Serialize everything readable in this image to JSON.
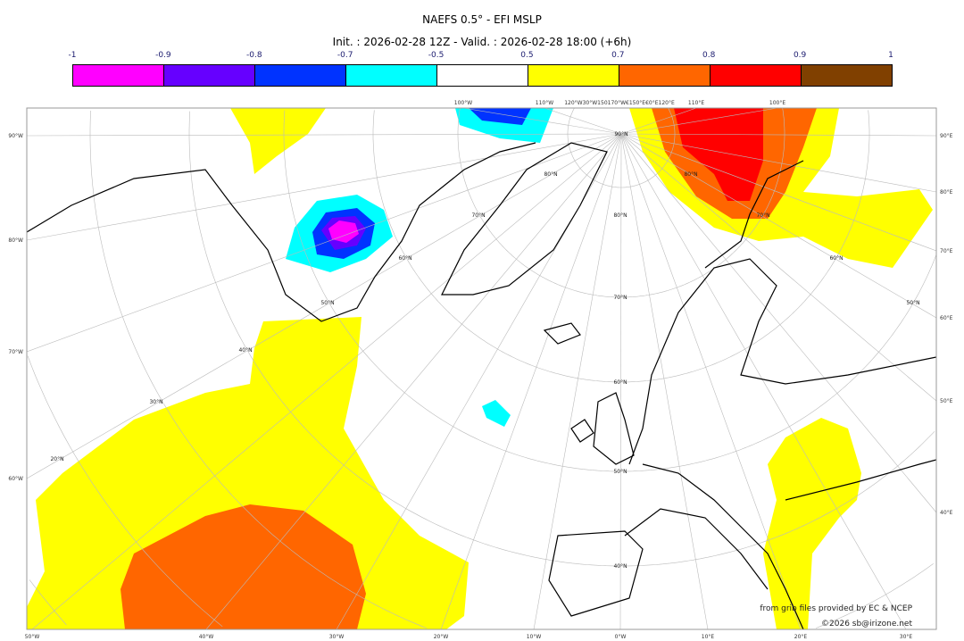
{
  "title": "NAEFS 0.5° - EFI MSLP",
  "subtitle": "Init. : 2026-02-28 12Z - Valid. : 2026-02-28 18:00 (+6h)",
  "colorbar": {
    "ticks": [
      "-1",
      "-0.9",
      "-0.8",
      "-0.7",
      "-0.5",
      "0.5",
      "0.7",
      "0.8",
      "0.9",
      "1"
    ],
    "colors": [
      "#ff00ff",
      "#6600ff",
      "#0033ff",
      "#00ffff",
      "#ffffff",
      "#ffff00",
      "#ff6600",
      "#ff0000",
      "#804000"
    ]
  },
  "axis_labels": {
    "left": [
      "90°W",
      "80°W",
      "70°W",
      "60°W"
    ],
    "right": [
      "90°E",
      "80°E",
      "70°E",
      "60°E",
      "50°E",
      "40°E"
    ],
    "bottom": [
      "50°W",
      "40°W",
      "30°W",
      "20°W",
      "10°W",
      "0°W",
      "10°E",
      "20°E",
      "30°E"
    ],
    "top": [
      "100°W",
      "110°W",
      "120°W30°W150170°W€150°E€0°E120°E",
      "110°E",
      "100°E"
    ]
  },
  "grid_labels": [
    "90°N",
    "80°N",
    "70°N",
    "60°N",
    "50°N",
    "40°N",
    "30°N",
    "20°N",
    "80°N",
    "70°N",
    "60°N",
    "50°N",
    "40°N",
    "80°N",
    "70°N",
    "60°N",
    "50°N"
  ],
  "credits": {
    "line1": "from grib files provided by EC & NCEP",
    "line2": "©2026 sb@irizone.net"
  }
}
